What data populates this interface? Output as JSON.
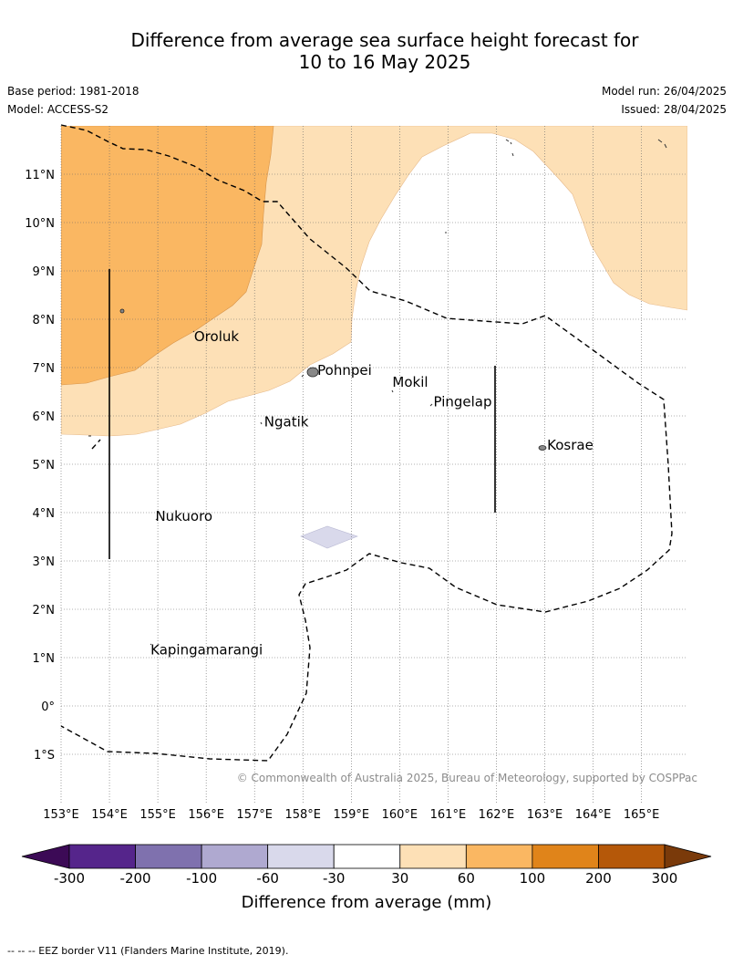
{
  "title_line1": "Difference from average sea surface height forecast for",
  "title_line2": "10 to 16 May 2025",
  "meta": {
    "base_period": "Base period: 1981-2018",
    "model": "Model: ACCESS-S2",
    "model_run": "Model run: 26/04/2025",
    "issued": "Issued: 28/04/2025"
  },
  "map": {
    "lon_range": [
      153,
      165.95
    ],
    "lat_range": [
      -2,
      12
    ],
    "lat_ticks": [
      {
        "v": 11,
        "label": "11°N"
      },
      {
        "v": 10,
        "label": "10°N"
      },
      {
        "v": 9,
        "label": "9°N"
      },
      {
        "v": 8,
        "label": "8°N"
      },
      {
        "v": 7,
        "label": "7°N"
      },
      {
        "v": 6,
        "label": "6°N"
      },
      {
        "v": 5,
        "label": "5°N"
      },
      {
        "v": 4,
        "label": "4°N"
      },
      {
        "v": 3,
        "label": "3°N"
      },
      {
        "v": 2,
        "label": "2°N"
      },
      {
        "v": 1,
        "label": "1°N"
      },
      {
        "v": 0,
        "label": "0°"
      },
      {
        "v": -1,
        "label": "1°S"
      }
    ],
    "lon_ticks": [
      {
        "v": 153,
        "label": "153°E"
      },
      {
        "v": 154,
        "label": "154°E"
      },
      {
        "v": 155,
        "label": "155°E"
      },
      {
        "v": 156,
        "label": "156°E"
      },
      {
        "v": 157,
        "label": "157°E"
      },
      {
        "v": 158,
        "label": "158°E"
      },
      {
        "v": 159,
        "label": "159°E"
      },
      {
        "v": 160,
        "label": "160°E"
      },
      {
        "v": 161,
        "label": "161°E"
      },
      {
        "v": 162,
        "label": "162°E"
      },
      {
        "v": 163,
        "label": "163°E"
      },
      {
        "v": 164,
        "label": "164°E"
      },
      {
        "v": 165,
        "label": "165°E"
      }
    ],
    "islands": [
      {
        "name": "Oroluk",
        "lon": 155.75,
        "lat": 7.55
      },
      {
        "name": "Pohnpei",
        "lon": 158.3,
        "lat": 6.85
      },
      {
        "name": "Mokil",
        "lon": 159.85,
        "lat": 6.6
      },
      {
        "name": "Pingelap",
        "lon": 160.7,
        "lat": 6.2
      },
      {
        "name": "Ngatik",
        "lon": 157.2,
        "lat": 5.78
      },
      {
        "name": "Kosrae",
        "lon": 163.05,
        "lat": 5.3
      },
      {
        "name": "Nukuoro",
        "lon": 154.95,
        "lat": 3.83
      },
      {
        "name": "Kapingamarangi",
        "lon": 154.85,
        "lat": 1.07
      }
    ],
    "credit": "© Commonwealth of Australia 2025, Bureau of Meteorology, supported by COSPPac"
  },
  "colorbar": {
    "colors": [
      "#3c0a56",
      "#55258b",
      "#7f71ae",
      "#afa9d0",
      "#d9d9eb",
      "#ffffff",
      "#fde0b6",
      "#fab762",
      "#e0841a",
      "#b55809",
      "#7a3a0a"
    ],
    "labels": [
      "-300",
      "-200",
      "-100",
      "-60",
      "-30",
      "30",
      "60",
      "100",
      "200",
      "300"
    ],
    "title": "Difference from average (mm)"
  },
  "footnote": "-- -- -- EEZ border V11 (Flanders Marine Institute, 2019)."
}
